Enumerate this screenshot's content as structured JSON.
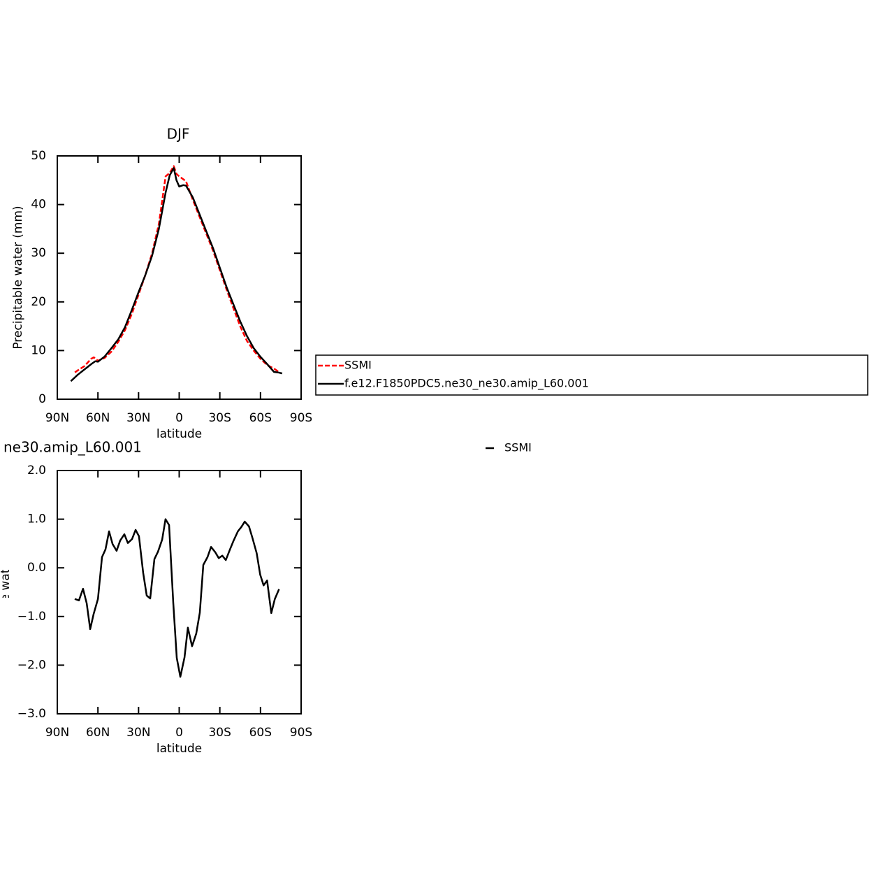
{
  "chart_data": [
    {
      "type": "line",
      "title": "DJF",
      "xlabel": "latitude",
      "ylabel": "Precipitable water (mm)",
      "xlim": [
        90,
        -90
      ],
      "xticks": [
        {
          "value": 90,
          "label": "90N"
        },
        {
          "value": 60,
          "label": "60N"
        },
        {
          "value": 30,
          "label": "30N"
        },
        0,
        {
          "value": -30,
          "label": "30S"
        },
        {
          "value": -60,
          "label": "60S"
        },
        {
          "value": -90,
          "label": "90S"
        }
      ],
      "ylim": [
        0,
        50
      ],
      "yticks": [
        0,
        10,
        20,
        30,
        40,
        50
      ],
      "series": [
        {
          "name": "SSMI",
          "color": "#ff0000",
          "dashed": true,
          "x": [
            77,
            75,
            70,
            65,
            63,
            60,
            55,
            50,
            45,
            40,
            35,
            30,
            25,
            20,
            15,
            10,
            7,
            4,
            2,
            0,
            -5,
            -10,
            -15,
            -20,
            -25,
            -30,
            -35,
            -40,
            -45,
            -50,
            -55,
            -60,
            -65,
            -70,
            -74
          ],
          "values": [
            5.5,
            5.9,
            6.8,
            8.3,
            8.6,
            7.9,
            8.5,
            9.8,
            11.8,
            14.2,
            17.5,
            21.5,
            25.5,
            30.0,
            36.0,
            45.8,
            46.5,
            47.9,
            46.3,
            45.8,
            44.8,
            41.0,
            37.5,
            34.0,
            30.5,
            26.5,
            22.5,
            18.7,
            15.0,
            12.0,
            10.0,
            8.3,
            7.0,
            6.3,
            5.5
          ]
        },
        {
          "name": "f.e12.F1850PDC5.ne30_ne30.amip_L60.001",
          "color": "#000000",
          "dashed": false,
          "x": [
            80,
            75,
            70,
            65,
            62,
            60,
            55,
            50,
            45,
            40,
            35,
            30,
            25,
            20,
            15,
            10,
            7,
            4,
            2,
            0,
            -3,
            -5,
            -10,
            -15,
            -20,
            -25,
            -30,
            -35,
            -40,
            -45,
            -50,
            -55,
            -60,
            -65,
            -70,
            -73,
            -76
          ],
          "values": [
            3.7,
            5.0,
            6.1,
            7.2,
            7.8,
            7.7,
            8.8,
            10.5,
            12.3,
            14.8,
            18.3,
            22.0,
            25.5,
            29.5,
            35.0,
            42.5,
            46.0,
            47.5,
            45.0,
            43.7,
            44.0,
            43.9,
            41.5,
            38.0,
            34.5,
            31.0,
            27.0,
            23.0,
            19.5,
            16.0,
            13.0,
            10.5,
            8.7,
            7.2,
            5.6,
            5.5,
            5.3
          ]
        }
      ]
    },
    {
      "type": "line",
      "title": "ne30.amip_L60.001",
      "xlabel": "latitude",
      "ylabel": "Precipitable water (mm)",
      "xlim": [
        90,
        -90
      ],
      "xticks": [
        {
          "value": 90,
          "label": "90N"
        },
        {
          "value": 60,
          "label": "60N"
        },
        {
          "value": 30,
          "label": "30N"
        },
        0,
        {
          "value": -30,
          "label": "30S"
        },
        {
          "value": -60,
          "label": "60S"
        },
        {
          "value": -90,
          "label": "90S"
        }
      ],
      "ylim": [
        -3,
        2
      ],
      "yticks": [
        {
          "value": 2,
          "label": "2.0"
        },
        {
          "value": 1,
          "label": "1.0"
        },
        {
          "value": 0,
          "label": "0.0"
        },
        {
          "value": -1,
          "label": "−1.0"
        },
        {
          "value": -2,
          "label": "−2.0"
        },
        {
          "value": -3,
          "label": "−3.0"
        }
      ],
      "series": [
        {
          "name": "SSMI",
          "color": "#000000",
          "dashed": false,
          "x": [
            77.1,
            74,
            71,
            68.3,
            65.7,
            63.2,
            60,
            57,
            54.4,
            51.8,
            49.2,
            46.2,
            43.6,
            40.5,
            37.9,
            34.8,
            32.2,
            29.7,
            26.6,
            24,
            21.4,
            18.3,
            15.7,
            12.6,
            10.1,
            7.5,
            4.4,
            1.8,
            -0.8,
            -3.9,
            -6.4,
            -9.5,
            -12.6,
            -15.2,
            -17.8,
            -20.9,
            -23.5,
            -26.6,
            -29.2,
            -31.8,
            -34.4,
            -37.5,
            -40,
            -43.3,
            -45.9,
            -48.4,
            -51.5,
            -54.1,
            -57.2,
            -59.8,
            -62.3,
            -64.9,
            -68,
            -70.6,
            -73.7
          ],
          "values": [
            -0.64,
            -0.67,
            -0.43,
            -0.73,
            -1.26,
            -0.95,
            -0.64,
            0.22,
            0.38,
            0.75,
            0.49,
            0.35,
            0.56,
            0.69,
            0.51,
            0.59,
            0.78,
            0.65,
            -0.1,
            -0.57,
            -0.63,
            0.18,
            0.33,
            0.58,
            1.0,
            0.88,
            -0.72,
            -1.85,
            -2.24,
            -1.84,
            -1.23,
            -1.61,
            -1.35,
            -0.92,
            0.06,
            0.22,
            0.43,
            0.32,
            0.2,
            0.25,
            0.16,
            0.38,
            0.55,
            0.75,
            0.84,
            0.95,
            0.85,
            0.61,
            0.3,
            -0.14,
            -0.36,
            -0.26,
            -0.93,
            -0.64,
            -0.44
          ]
        }
      ]
    }
  ]
}
